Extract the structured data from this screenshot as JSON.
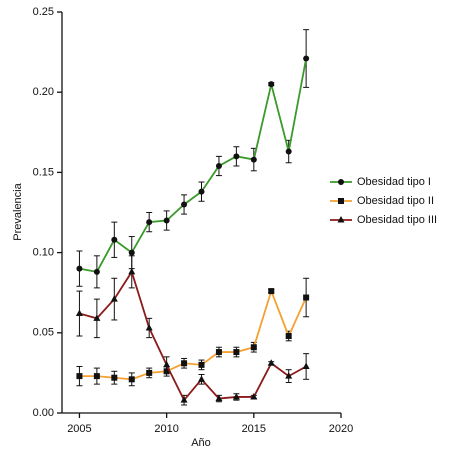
{
  "chart_data": {
    "type": "line",
    "x_label": "Año",
    "y_label": "Prevalencia",
    "x": [
      2005,
      2006,
      2007,
      2008,
      2009,
      2010,
      2011,
      2012,
      2013,
      2014,
      2015,
      2016,
      2017,
      2018
    ],
    "xlim": [
      2004,
      2020
    ],
    "xticks": [
      2005,
      2010,
      2015,
      2020
    ],
    "ylim": [
      0,
      0.25
    ],
    "yticks": [
      {
        "value": 0,
        "label": "0.00"
      },
      {
        "value": 0.05,
        "label": "0.05"
      },
      {
        "value": 0.1,
        "label": "0.10"
      },
      {
        "value": 0.15,
        "label": "0.15"
      },
      {
        "value": 0.2,
        "label": "0.20"
      },
      {
        "value": 0.25,
        "label": "0.25"
      }
    ],
    "legend": "right",
    "series": [
      {
        "name": "Obesidad tipo I",
        "color": "#3a9a2a",
        "marker": "circle",
        "values": [
          0.09,
          0.088,
          0.108,
          0.1,
          0.119,
          0.12,
          0.13,
          0.138,
          0.154,
          0.16,
          0.158,
          0.205,
          0.163,
          0.221
        ],
        "errors": [
          0.011,
          0.01,
          0.011,
          0.01,
          0.006,
          0.006,
          0.006,
          0.006,
          0.006,
          0.006,
          0.007,
          0.001,
          0.007,
          0.018
        ]
      },
      {
        "name": "Obesidad tipo II",
        "color": "#f5a030",
        "marker": "square",
        "values": [
          0.023,
          0.023,
          0.022,
          0.021,
          0.025,
          0.026,
          0.031,
          0.03,
          0.038,
          0.038,
          0.041,
          0.076,
          0.048,
          0.072
        ],
        "errors": [
          0.006,
          0.005,
          0.004,
          0.004,
          0.003,
          0.003,
          0.003,
          0.003,
          0.003,
          0.003,
          0.003,
          0.001,
          0.003,
          0.012
        ]
      },
      {
        "name": "Obesidad tipo III",
        "color": "#8b1a1a",
        "marker": "triangle",
        "values": [
          0.062,
          0.059,
          0.071,
          0.088,
          0.053,
          0.03,
          0.008,
          0.021,
          0.009,
          0.01,
          0.01,
          0.031,
          0.023,
          0.029
        ],
        "errors": [
          0.014,
          0.012,
          0.013,
          0.01,
          0.006,
          0.005,
          0.003,
          0.003,
          0.002,
          0.002,
          0.001,
          0.001,
          0.004,
          0.008
        ]
      }
    ]
  }
}
